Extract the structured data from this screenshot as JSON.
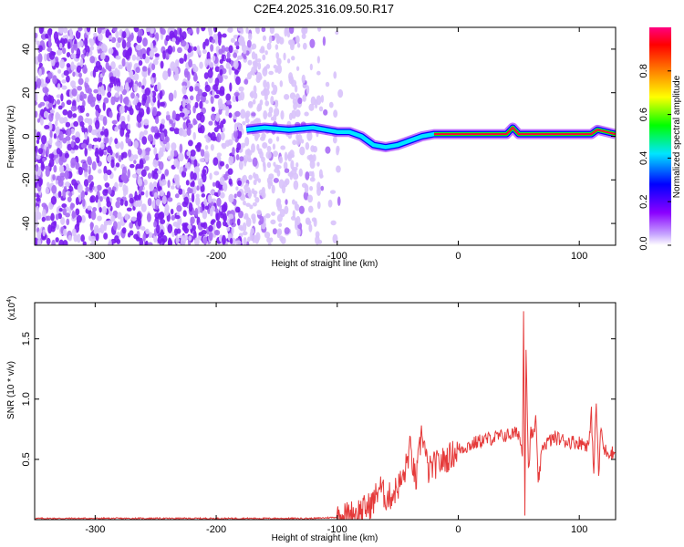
{
  "title": "C2E4.2025.316.09.50.R17",
  "chart_data": [
    {
      "type": "heatmap",
      "xlabel": "Height of straight line (km)",
      "ylabel": "Frequency (Hz)",
      "xlim": [
        -350,
        130
      ],
      "ylim": [
        -50,
        50
      ],
      "xticks": [
        -300,
        -200,
        -100,
        0,
        100
      ],
      "yticks": [
        -40,
        -20,
        0,
        20,
        40
      ],
      "xtick_labels": [
        "-300",
        "-200",
        "-100",
        "0",
        "100"
      ],
      "ytick_labels": [
        "-40",
        "-20",
        "0",
        "20",
        "40"
      ],
      "colorbar": {
        "label": "Normalized spectral amplitude",
        "range": [
          0.0,
          1.0
        ],
        "ticks": [
          "0.0",
          "0.2",
          "0.4",
          "0.6",
          "0.8"
        ],
        "colormap": [
          "#ffffff",
          "#8a00ff",
          "#0000ff",
          "#00e5ff",
          "#00ff00",
          "#ffff00",
          "#ff8000",
          "#ff0000",
          "#ff0080"
        ]
      },
      "noise_region": {
        "x_range": [
          -350,
          -100
        ],
        "y_range": [
          -50,
          50
        ],
        "note": "scattered purple speckle noise, fading beyond -100 km"
      },
      "signal_track": {
        "x": [
          -175,
          -160,
          -140,
          -120,
          -100,
          -90,
          -80,
          -70,
          -60,
          -50,
          -40,
          -30,
          -20,
          -10,
          0,
          40,
          45,
          50,
          60,
          100,
          110,
          115,
          130
        ],
        "y": [
          3,
          4,
          3,
          4,
          2,
          2,
          0,
          -4,
          -5,
          -4,
          -2,
          0,
          1,
          1,
          1,
          1,
          4,
          1,
          1,
          1,
          1,
          3,
          1
        ]
      }
    },
    {
      "type": "line",
      "xlabel": "Height of straight line (km)",
      "ylabel": "SNR (10 * v/v)",
      "y_multiplier": "(x10",
      "y_multiplier_exp": "4",
      "xlim": [
        -350,
        130
      ],
      "ylim": [
        0,
        1.8
      ],
      "xticks": [
        -300,
        -200,
        -100,
        0,
        100
      ],
      "yticks": [
        0.5,
        1.0,
        1.5
      ],
      "xtick_labels": [
        "-300",
        "-200",
        "-100",
        "0",
        "100"
      ],
      "ytick_labels": [
        "0.5",
        "1.0",
        "1.5"
      ],
      "series": [
        {
          "color": "#e53a3a",
          "x": [
            -350,
            -300,
            -200,
            -120,
            -100,
            -90,
            -75,
            -70,
            -65,
            -60,
            -55,
            -45,
            -40,
            -35,
            -30,
            -25,
            -20,
            -10,
            0,
            10,
            20,
            30,
            40,
            50,
            53,
            54,
            55,
            56,
            58,
            60,
            62,
            64,
            66,
            70,
            80,
            90,
            100,
            108,
            110,
            112,
            114,
            116,
            118,
            120,
            125,
            130
          ],
          "y": [
            0.01,
            0.01,
            0.01,
            0.01,
            0.02,
            0.04,
            0.1,
            0.15,
            0.28,
            0.18,
            0.2,
            0.35,
            0.6,
            0.3,
            0.75,
            0.4,
            0.45,
            0.5,
            0.58,
            0.62,
            0.66,
            0.68,
            0.7,
            0.72,
            0.55,
            1.76,
            0.05,
            1.45,
            0.4,
            0.72,
            0.68,
            0.85,
            0.3,
            0.62,
            0.68,
            0.65,
            0.64,
            0.62,
            0.88,
            0.4,
            0.98,
            0.35,
            0.78,
            0.58,
            0.56,
            0.55
          ]
        }
      ]
    }
  ]
}
